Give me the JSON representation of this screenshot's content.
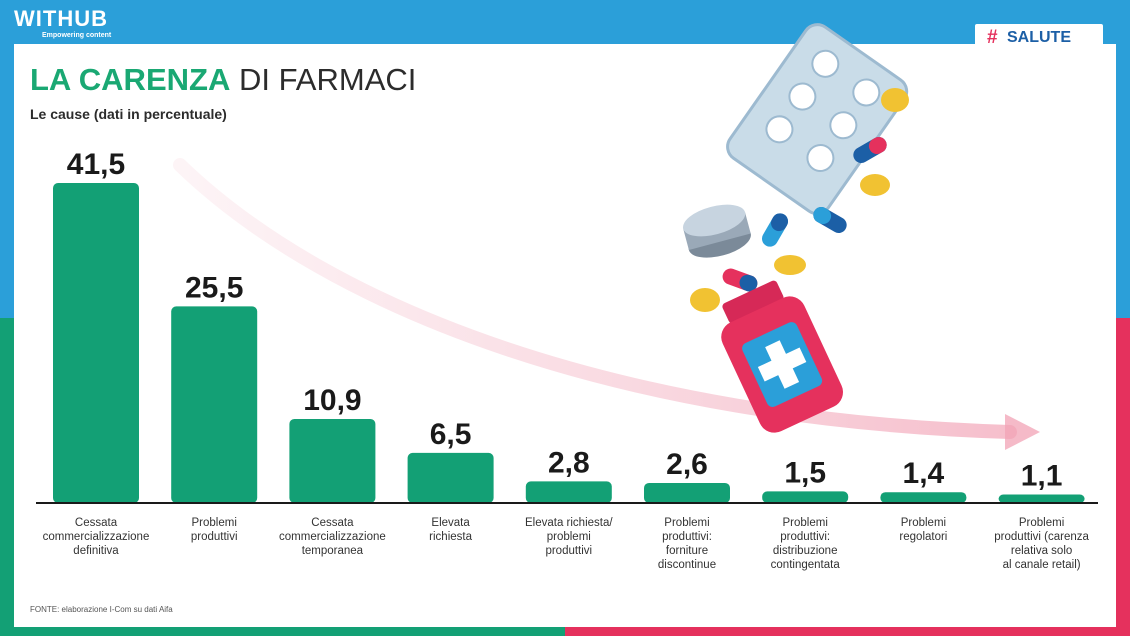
{
  "brand": {
    "name": "WITHUB",
    "tagline": "Empowering content"
  },
  "section_tag": {
    "icon": "hashtag-icon",
    "label": "SALUTE"
  },
  "header": {
    "title_highlight": "LA CARENZA",
    "title_rest": "DI FARMACI",
    "subtitle": "Le cause (dati in percentuale)"
  },
  "source": "FONTE: elaborazione I-Com su dati Aifa",
  "colors": {
    "bar": "#13a075",
    "accent_green": "#1aa873",
    "accent_red": "#e5315d",
    "accent_blue": "#2b9fd9"
  },
  "chart_data": {
    "type": "bar",
    "title": "LA CARENZA DI FARMACI",
    "subtitle": "Le cause (dati in percentuale)",
    "categories": [
      [
        "Cessata",
        "commercializzazione",
        "definitiva"
      ],
      [
        "Problemi",
        "produttivi"
      ],
      [
        "Cessata",
        "commercializzazione",
        "temporanea"
      ],
      [
        "Elevata",
        "richiesta"
      ],
      [
        "Elevata richiesta/",
        "problemi",
        "produttivi"
      ],
      [
        "Problemi",
        "produttivi:",
        "forniture",
        "discontinue"
      ],
      [
        "Problemi",
        "produttivi:",
        "distribuzione",
        "contingentata"
      ],
      [
        "Problemi",
        "regolatori"
      ],
      [
        "Problemi",
        "produttivi (carenza",
        "relativa solo",
        "al canale retail)"
      ]
    ],
    "values": [
      41.5,
      25.5,
      10.9,
      6.5,
      2.8,
      2.6,
      1.5,
      1.4,
      1.1
    ],
    "labels": [
      "41,5",
      "25,5",
      "10,9",
      "6,5",
      "2,8",
      "2,6",
      "1,5",
      "1,4",
      "1,1"
    ],
    "ylim": [
      0,
      41.5
    ],
    "xlabel": "",
    "ylabel": "",
    "grid": false,
    "legend": "none"
  }
}
